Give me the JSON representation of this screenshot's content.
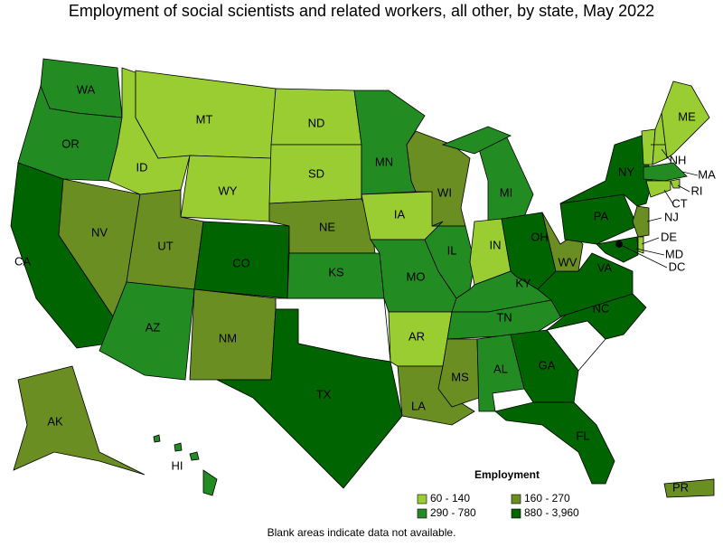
{
  "title": "Employment of social scientists and related workers, all other, by state, May 2022",
  "legend": {
    "title": "Employment",
    "items": [
      {
        "label": "60 - 140",
        "color": "#9acd32"
      },
      {
        "label": "160 - 270",
        "color": "#6b8e23"
      },
      {
        "label": "290 - 780",
        "color": "#228b22"
      },
      {
        "label": "880 - 3,960",
        "color": "#006400"
      }
    ]
  },
  "note": "Blank areas indicate data not available.",
  "states": [
    {
      "name": "WA",
      "color": "#228b22"
    },
    {
      "name": "OR",
      "color": "#228b22"
    },
    {
      "name": "CA",
      "color": "#006400"
    },
    {
      "name": "NV",
      "color": "#6b8e23"
    },
    {
      "name": "ID",
      "color": "#9acd32"
    },
    {
      "name": "MT",
      "color": "#9acd32"
    },
    {
      "name": "WY",
      "color": "#9acd32"
    },
    {
      "name": "UT",
      "color": "#6b8e23"
    },
    {
      "name": "AZ",
      "color": "#228b22"
    },
    {
      "name": "CO",
      "color": "#006400"
    },
    {
      "name": "NM",
      "color": "#6b8e23"
    },
    {
      "name": "ND",
      "color": "#9acd32"
    },
    {
      "name": "SD",
      "color": "#9acd32"
    },
    {
      "name": "NE",
      "color": "#6b8e23"
    },
    {
      "name": "KS",
      "color": "#228b22"
    },
    {
      "name": "TX",
      "color": "#006400"
    },
    {
      "name": "MN",
      "color": "#228b22"
    },
    {
      "name": "IA",
      "color": "#9acd32"
    },
    {
      "name": "MO",
      "color": "#228b22"
    },
    {
      "name": "AR",
      "color": "#9acd32"
    },
    {
      "name": "LA",
      "color": "#6b8e23"
    },
    {
      "name": "WI",
      "color": "#6b8e23"
    },
    {
      "name": "IL",
      "color": "#228b22"
    },
    {
      "name": "MI",
      "color": "#228b22"
    },
    {
      "name": "IN",
      "color": "#9acd32"
    },
    {
      "name": "OH",
      "color": "#006400"
    },
    {
      "name": "KY",
      "color": "#228b22"
    },
    {
      "name": "TN",
      "color": "#228b22"
    },
    {
      "name": "MS",
      "color": "#6b8e23"
    },
    {
      "name": "AL",
      "color": "#228b22"
    },
    {
      "name": "GA",
      "color": "#006400"
    },
    {
      "name": "FL",
      "color": "#006400"
    },
    {
      "name": "NC",
      "color": "#006400"
    },
    {
      "name": "VA",
      "color": "#006400"
    },
    {
      "name": "WV",
      "color": "#6b8e23"
    },
    {
      "name": "PA",
      "color": "#006400"
    },
    {
      "name": "NY",
      "color": "#006400"
    },
    {
      "name": "VT",
      "color": "#9acd32"
    },
    {
      "name": "NH",
      "color": "#9acd32"
    },
    {
      "name": "ME",
      "color": "#9acd32"
    },
    {
      "name": "MA",
      "color": "#228b22"
    },
    {
      "name": "RI",
      "color": "#9acd32"
    },
    {
      "name": "CT",
      "color": "#9acd32"
    },
    {
      "name": "NJ",
      "color": "#6b8e23"
    },
    {
      "name": "DE",
      "color": "#9acd32"
    },
    {
      "name": "MD",
      "color": "#006400"
    },
    {
      "name": "DC",
      "color": "#006400"
    },
    {
      "name": "AK",
      "color": "#6b8e23"
    },
    {
      "name": "HI",
      "color": "#228b22"
    },
    {
      "name": "PR",
      "color": "#6b8e23"
    }
  ]
}
